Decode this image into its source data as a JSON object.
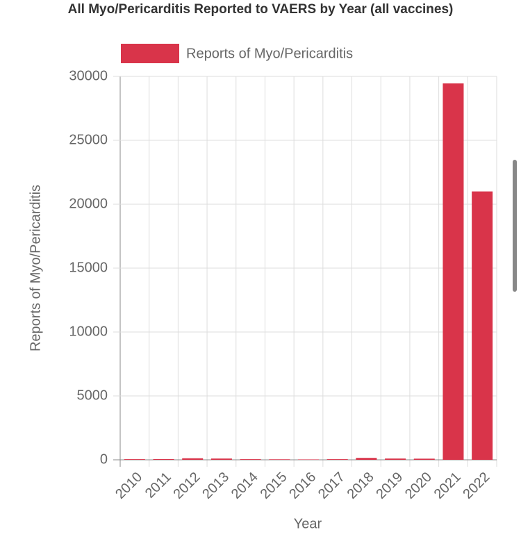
{
  "chart_data": {
    "type": "bar",
    "title": "All Myo/Pericarditis Reported to VAERS by Year (all vaccines)",
    "x_label": "Year",
    "y_label": "Reports of Myo/Pericarditis",
    "categories": [
      "2010",
      "2011",
      "2012",
      "2013",
      "2014",
      "2015",
      "2016",
      "2017",
      "2018",
      "2019",
      "2020",
      "2021",
      "2022"
    ],
    "series": [
      {
        "name": "Reports of Myo/Pericarditis",
        "color": "#d9344a",
        "values": [
          50,
          60,
          120,
          100,
          50,
          40,
          30,
          50,
          150,
          100,
          90,
          29450,
          21000
        ]
      }
    ],
    "ylim": [
      0,
      30000
    ],
    "yticks": [
      0,
      5000,
      10000,
      15000,
      20000,
      25000,
      30000
    ],
    "grid": true
  }
}
